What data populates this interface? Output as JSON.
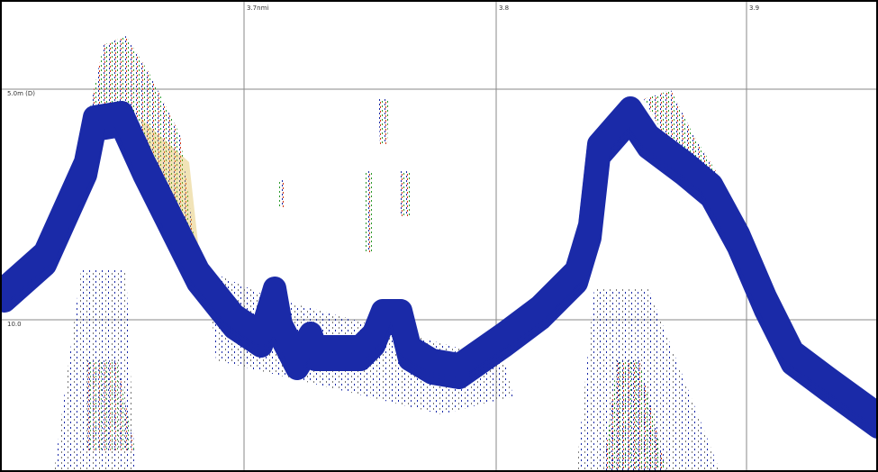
{
  "range_labels": [
    "3.7nmi",
    "3.8",
    "3.9"
  ],
  "depth_labels": [
    "5.0m (D)",
    "10.0"
  ]
}
